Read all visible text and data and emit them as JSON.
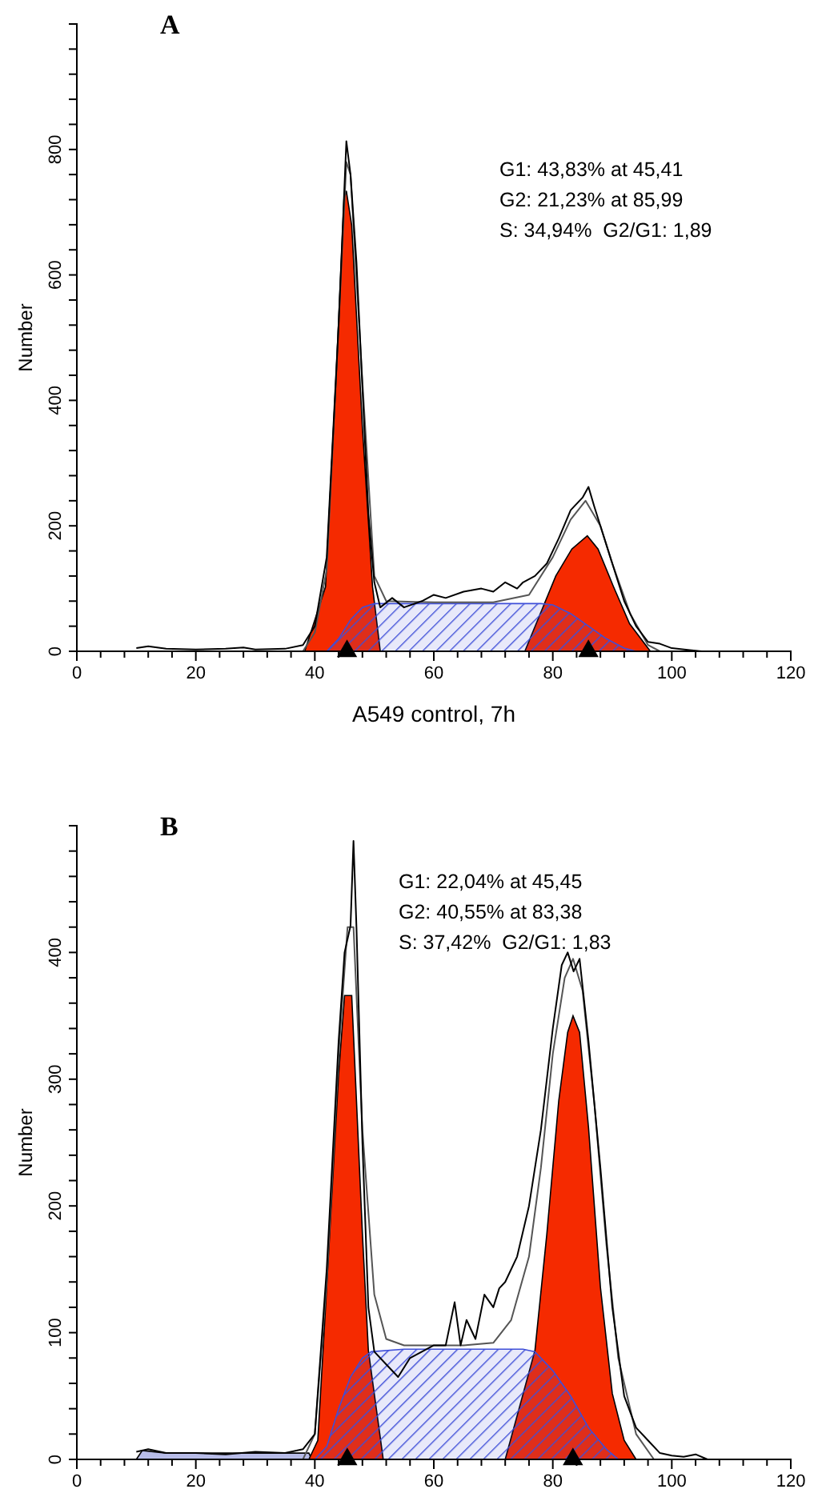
{
  "chart_data": [
    {
      "type": "area",
      "title": "A",
      "xlabel": "A549 control, 7h",
      "ylabel": "Number",
      "xlim": [
        0,
        120
      ],
      "ylim": [
        0,
        1000
      ],
      "xticks": [
        0,
        {
          "value": 4,
          "label": null
        },
        {
          "value": 8,
          "label": null
        },
        {
          "value": 12,
          "label": null
        },
        {
          "value": 16,
          "label": null
        },
        20,
        {
          "value": 24,
          "label": null
        },
        {
          "value": 28,
          "label": null
        },
        {
          "value": 32,
          "label": null
        },
        {
          "value": 36,
          "label": null
        },
        40,
        {
          "value": 44,
          "label": null
        },
        {
          "value": 48,
          "label": null
        },
        {
          "value": 52,
          "label": null
        },
        {
          "value": 56,
          "label": null
        },
        60,
        {
          "value": 64,
          "label": null
        },
        {
          "value": 68,
          "label": null
        },
        {
          "value": 72,
          "label": null
        },
        {
          "value": 76,
          "label": null
        },
        80,
        {
          "value": 84,
          "label": null
        },
        {
          "value": 88,
          "label": null
        },
        {
          "value": 92,
          "label": null
        },
        {
          "value": 96,
          "label": null
        },
        100,
        {
          "value": 104,
          "label": null
        },
        {
          "value": 108,
          "label": null
        },
        {
          "value": 112,
          "label": null
        },
        {
          "value": 116,
          "label": null
        },
        120
      ],
      "yticks": [
        0,
        {
          "value": 40,
          "label": null
        },
        {
          "value": 80,
          "label": null
        },
        {
          "value": 120,
          "label": null
        },
        {
          "value": 160,
          "label": null
        },
        200,
        {
          "value": 240,
          "label": null
        },
        {
          "value": 280,
          "label": null
        },
        {
          "value": 320,
          "label": null
        },
        {
          "value": 360,
          "label": null
        },
        400,
        {
          "value": 440,
          "label": null
        },
        {
          "value": 480,
          "label": null
        },
        {
          "value": 520,
          "label": null
        },
        {
          "value": 560,
          "label": null
        },
        600,
        {
          "value": 640,
          "label": null
        },
        {
          "value": 680,
          "label": null
        },
        {
          "value": 720,
          "label": null
        },
        {
          "value": 760,
          "label": null
        },
        800,
        {
          "value": 840,
          "label": null
        },
        {
          "value": 880,
          "label": null
        },
        {
          "value": 920,
          "label": null
        },
        {
          "value": 960,
          "label": null
        }
      ],
      "annotations": [
        "G1: 43,83% at 45,41",
        "G2: 21,23% at 85,99",
        "S: 34,94%  G2/G1: 1,89"
      ],
      "series": [
        {
          "type": "area",
          "color": "#f52a00",
          "x": [
            38.3,
            40,
            41.8,
            43.6,
            44.9,
            45.3,
            46.2,
            48,
            49.7,
            51
          ],
          "values": [
            0,
            null,
            103,
            442,
            721,
            734,
            679,
            357,
            103,
            0
          ]
        },
        {
          "type": "area",
          "color": "#f52a00",
          "x": [
            75.3,
            77.9,
            80.5,
            83.2,
            85.8,
            87.6,
            90.2,
            92.9,
            96.4
          ],
          "values": [
            0,
            null,
            120,
            163,
            184,
            163,
            103,
            44,
            0
          ]
        },
        {
          "type": "area",
          "color": "#3f4fd8",
          "x": [
            42,
            44,
            46,
            48,
            50,
            55,
            60,
            70,
            78,
            80,
            83,
            86,
            89,
            92,
            94
          ],
          "values": [
            0,
            20,
            50,
            70,
            76,
            76,
            76,
            76,
            76,
            74,
            60,
            40,
            20,
            5,
            0
          ]
        },
        {
          "type": "line",
          "color": "#555555",
          "x": [
            38,
            40,
            42,
            44,
            45.3,
            46,
            48,
            50,
            52,
            60,
            70,
            76,
            80,
            83,
            85.5,
            88,
            90,
            93,
            96,
            98
          ],
          "values": [
            0,
            30,
            130,
            520,
            780,
            760,
            430,
            120,
            80,
            78,
            78,
            90,
            150,
            210,
            240,
            200,
            140,
            60,
            10,
            0
          ]
        },
        {
          "type": "line",
          "color": "#000000",
          "x": [
            10,
            12,
            15,
            20,
            25,
            28,
            30,
            35,
            38,
            40,
            42,
            44,
            45.3,
            46,
            47,
            48,
            49,
            50,
            51,
            53,
            55,
            58,
            60,
            62,
            65,
            68,
            70,
            72,
            74,
            75,
            77,
            79,
            81,
            83,
            85,
            86,
            87,
            88,
            90,
            92,
            94,
            96,
            98,
            100,
            103,
            105
          ],
          "values": [
            5,
            8,
            4,
            3,
            4,
            6,
            3,
            4,
            10,
            40,
            150,
            520,
            813,
            760,
            620,
            420,
            220,
            110,
            70,
            85,
            70,
            80,
            90,
            85,
            95,
            100,
            95,
            110,
            100,
            110,
            120,
            140,
            180,
            225,
            245,
            262,
            230,
            200,
            140,
            80,
            40,
            15,
            12,
            5,
            2,
            0
          ]
        },
        {
          "type": "scatter",
          "marker": "triangle",
          "color": "#000000",
          "x": [
            45.41,
            85.99
          ],
          "values": [
            0,
            0
          ]
        }
      ]
    },
    {
      "type": "area",
      "title": "B",
      "ylabel": "Number",
      "xlim": [
        0,
        120
      ],
      "ylim": [
        0,
        500
      ],
      "xticks": [
        0,
        {
          "value": 4,
          "label": null
        },
        {
          "value": 8,
          "label": null
        },
        {
          "value": 12,
          "label": null
        },
        {
          "value": 16,
          "label": null
        },
        20,
        {
          "value": 24,
          "label": null
        },
        {
          "value": 28,
          "label": null
        },
        {
          "value": 32,
          "label": null
        },
        {
          "value": 36,
          "label": null
        },
        40,
        {
          "value": 44,
          "label": null
        },
        {
          "value": 48,
          "label": null
        },
        {
          "value": 52,
          "label": null
        },
        {
          "value": 56,
          "label": null
        },
        60,
        {
          "value": 64,
          "label": null
        },
        {
          "value": 68,
          "label": null
        },
        {
          "value": 72,
          "label": null
        },
        {
          "value": 76,
          "label": null
        },
        80,
        {
          "value": 84,
          "label": null
        },
        {
          "value": 88,
          "label": null
        },
        {
          "value": 92,
          "label": null
        },
        {
          "value": 96,
          "label": null
        },
        100,
        {
          "value": 104,
          "label": null
        },
        {
          "value": 108,
          "label": null
        },
        {
          "value": 112,
          "label": null
        },
        {
          "value": 116,
          "label": null
        },
        120
      ],
      "yticks": [
        0,
        {
          "value": 20,
          "label": null
        },
        {
          "value": 40,
          "label": null
        },
        {
          "value": 60,
          "label": null
        },
        {
          "value": 80,
          "label": null
        },
        100,
        {
          "value": 120,
          "label": null
        },
        {
          "value": 140,
          "label": null
        },
        {
          "value": 160,
          "label": null
        },
        {
          "value": 180,
          "label": null
        },
        200,
        {
          "value": 220,
          "label": null
        },
        {
          "value": 240,
          "label": null
        },
        {
          "value": 260,
          "label": null
        },
        {
          "value": 280,
          "label": null
        },
        300,
        {
          "value": 320,
          "label": null
        },
        {
          "value": 340,
          "label": null
        },
        {
          "value": 360,
          "label": null
        },
        {
          "value": 380,
          "label": null
        },
        400,
        {
          "value": 420,
          "label": null
        },
        {
          "value": 440,
          "label": null
        },
        {
          "value": 460,
          "label": null
        },
        {
          "value": 480,
          "label": null
        }
      ],
      "annotations": [
        "G1: 22,04% at 45,45",
        "G2: 40,55% at 83,38",
        "S: 37,42%  G2/G1: 1,83"
      ],
      "series": [
        {
          "type": "area",
          "color": "#b8bce8",
          "x": [
            10,
            11,
            15,
            20,
            25,
            30,
            35,
            39,
            39.5
          ],
          "values": [
            0,
            7,
            5,
            5,
            5,
            5,
            5,
            5,
            0
          ]
        },
        {
          "type": "area",
          "color": "#f52a00",
          "x": [
            39,
            40.5,
            42,
            44,
            45,
            46.2,
            47,
            48,
            49,
            50.5,
            51.5
          ],
          "values": [
            0,
            15,
            136,
            304,
            366,
            366,
            283,
            178,
            86,
            null,
            0
          ]
        },
        {
          "type": "area",
          "color": "#f52a00",
          "x": [
            72,
            74,
            77,
            79,
            81,
            82.5,
            83.4,
            84.5,
            86,
            88,
            90,
            92,
            94
          ],
          "values": [
            0,
            null,
            86,
            178,
            283,
            337,
            350,
            337,
            262,
            136,
            52,
            15,
            0
          ]
        },
        {
          "type": "area",
          "color": "#3f4fd8",
          "x": [
            40,
            42,
            44,
            46,
            48,
            49.5,
            55,
            65,
            75,
            77,
            80,
            83,
            86,
            89,
            91
          ],
          "values": [
            0,
            10,
            40,
            65,
            80,
            85,
            87,
            87,
            87,
            85,
            70,
            50,
            25,
            8,
            0
          ]
        },
        {
          "type": "line",
          "color": "#555555",
          "x": [
            38,
            40,
            42,
            44,
            45.5,
            46.5,
            48,
            50,
            52,
            55,
            60,
            65,
            70,
            73,
            76,
            78,
            80,
            82,
            83.4,
            85,
            87,
            89,
            91,
            94,
            97
          ],
          "values": [
            0,
            20,
            140,
            320,
            420,
            420,
            260,
            130,
            95,
            90,
            90,
            90,
            92,
            110,
            160,
            230,
            320,
            380,
            395,
            370,
            280,
            170,
            80,
            20,
            0
          ]
        },
        {
          "type": "line",
          "color": "#000000",
          "x": [
            10,
            12,
            15,
            20,
            25,
            30,
            35,
            38,
            40,
            42,
            44,
            45,
            46,
            46.5,
            47,
            48,
            49,
            50,
            52,
            54,
            56,
            58,
            60,
            62,
            63.5,
            64.5,
            65.5,
            67,
            68.5,
            70,
            71,
            72,
            74,
            76,
            78,
            80,
            81.5,
            82.5,
            83.5,
            84.5,
            86,
            88,
            90,
            92,
            94,
            96,
            98,
            100,
            102,
            104,
            106
          ],
          "values": [
            6,
            8,
            5,
            5,
            4,
            6,
            5,
            8,
            20,
            150,
            330,
            400,
            421,
            488,
            420,
            250,
            120,
            85,
            75,
            65,
            80,
            85,
            90,
            90,
            124,
            90,
            110,
            95,
            130,
            120,
            135,
            140,
            160,
            200,
            260,
            340,
            390,
            400,
            385,
            395,
            330,
            230,
            120,
            50,
            25,
            15,
            5,
            3,
            2,
            4,
            0
          ]
        },
        {
          "type": "scatter",
          "marker": "triangle",
          "color": "#000000",
          "x": [
            45.45,
            83.38
          ],
          "values": [
            0,
            0
          ]
        }
      ]
    }
  ]
}
